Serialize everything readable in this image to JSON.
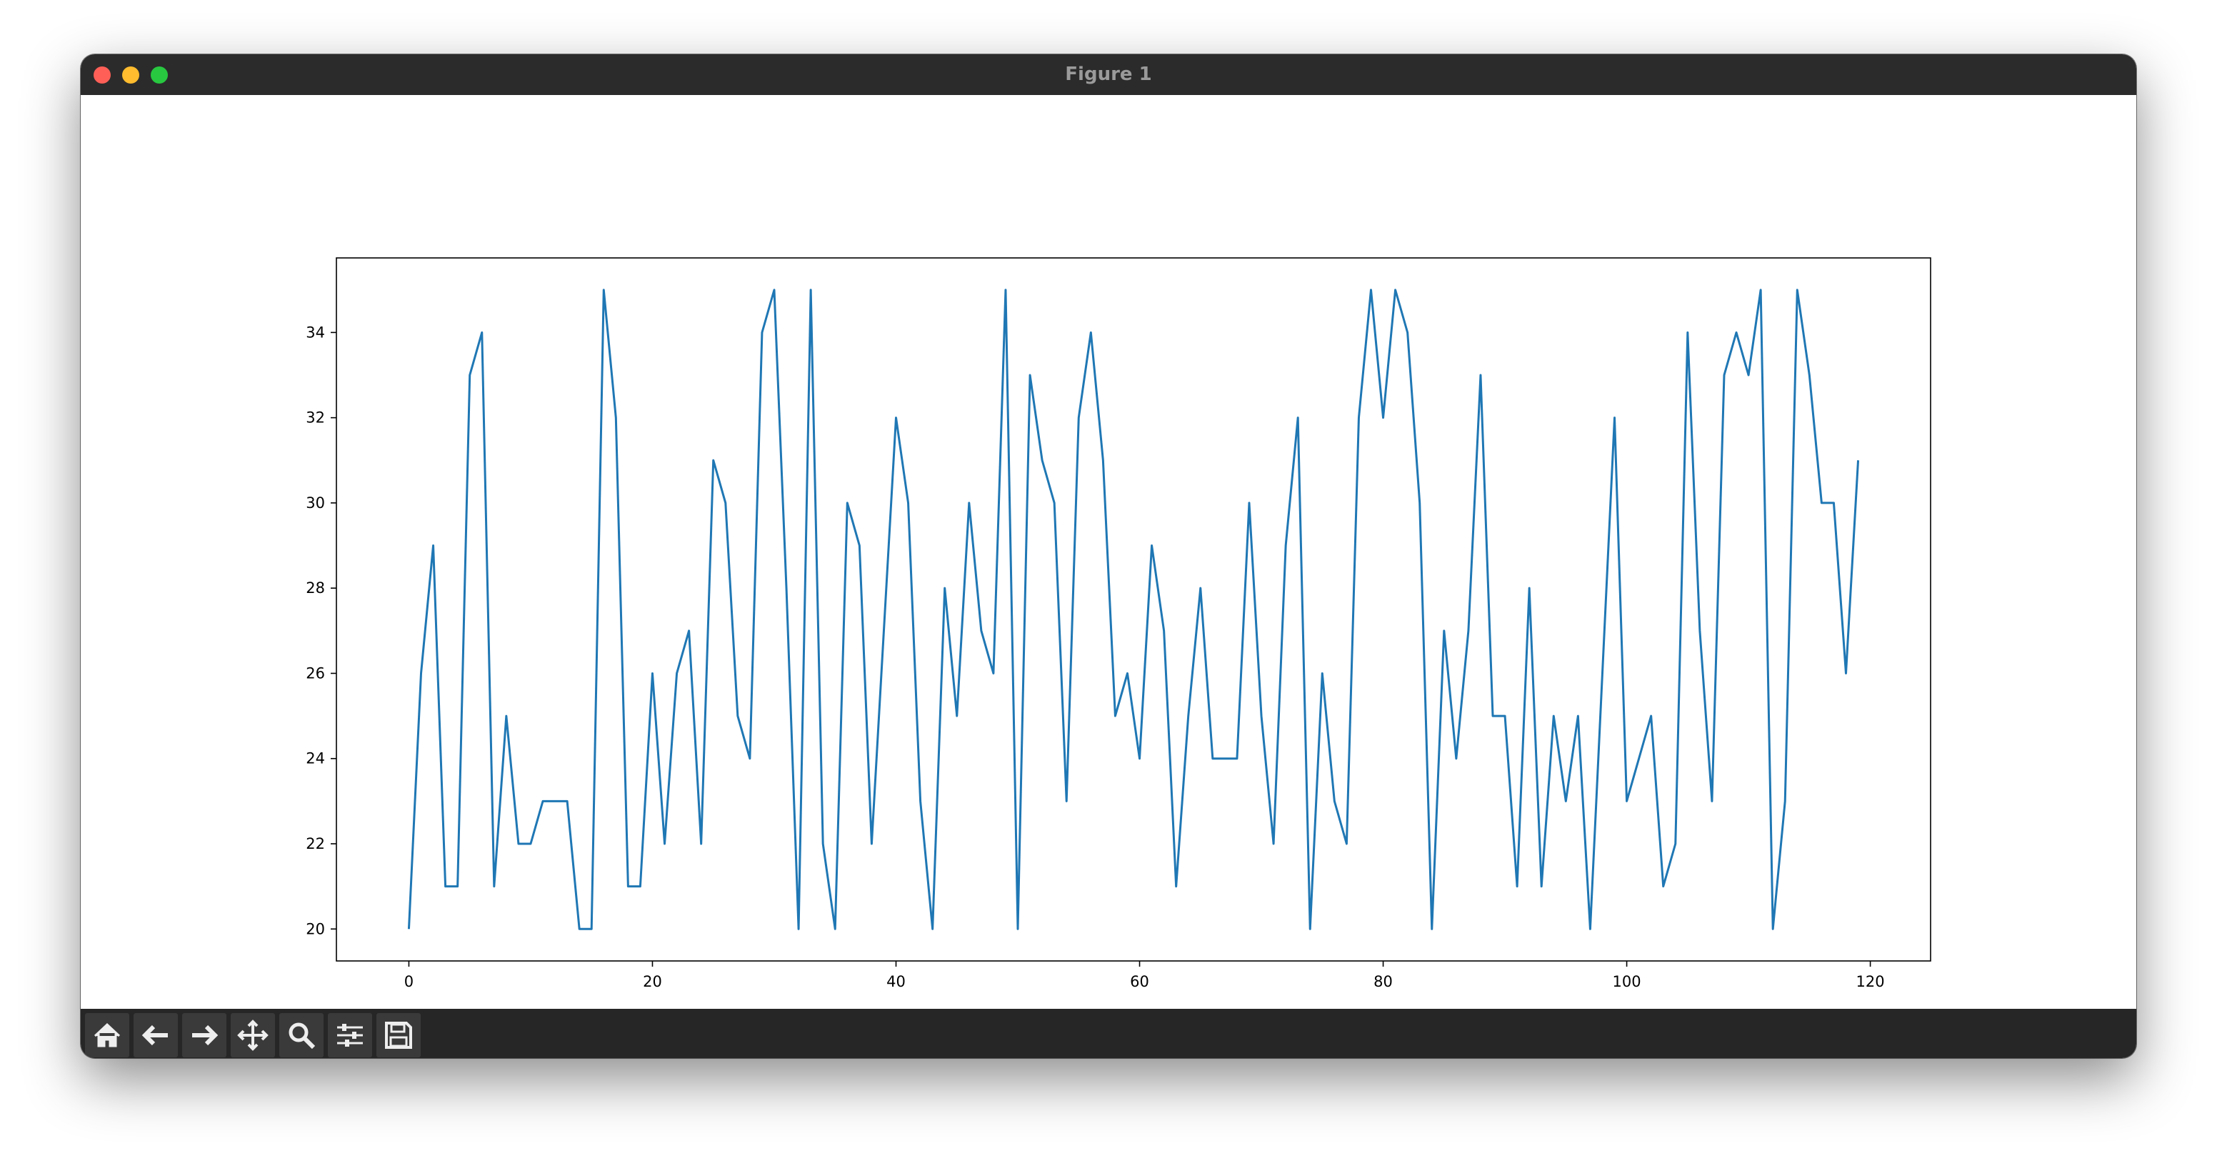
{
  "window_title": "Figure 1",
  "chart_data": {
    "type": "line",
    "color": "#1f77b4",
    "x": [
      0,
      1,
      2,
      3,
      4,
      5,
      6,
      7,
      8,
      9,
      10,
      11,
      12,
      13,
      14,
      15,
      16,
      17,
      18,
      19,
      20,
      21,
      22,
      23,
      24,
      25,
      26,
      27,
      28,
      29,
      30,
      31,
      32,
      33,
      34,
      35,
      36,
      37,
      38,
      39,
      40,
      41,
      42,
      43,
      44,
      45,
      46,
      47,
      48,
      49,
      50,
      51,
      52,
      53,
      54,
      55,
      56,
      57,
      58,
      59,
      60,
      61,
      62,
      63,
      64,
      65,
      66,
      67,
      68,
      69,
      70,
      71,
      72,
      73,
      74,
      75,
      76,
      77,
      78,
      79,
      80,
      81,
      82,
      83,
      84,
      85,
      86,
      87,
      88,
      89,
      90,
      91,
      92,
      93,
      94,
      95,
      96,
      97,
      98,
      99,
      100,
      101,
      102,
      103,
      104,
      105,
      106,
      107,
      108,
      109,
      110,
      111,
      112,
      113,
      114,
      115,
      116,
      117,
      118,
      119
    ],
    "values": [
      20,
      26,
      29,
      21,
      21,
      33,
      34,
      21,
      25,
      22,
      22,
      23,
      23,
      23,
      20,
      20,
      35,
      32,
      21,
      21,
      26,
      22,
      26,
      27,
      22,
      31,
      30,
      25,
      24,
      34,
      35,
      28,
      20,
      35,
      22,
      20,
      30,
      29,
      22,
      27,
      32,
      30,
      23,
      20,
      28,
      25,
      30,
      27,
      26,
      35,
      20,
      33,
      31,
      30,
      23,
      32,
      34,
      31,
      25,
      26,
      24,
      29,
      27,
      21,
      25,
      28,
      24,
      24,
      24,
      30,
      25,
      22,
      29,
      32,
      20,
      26,
      23,
      22,
      32,
      35,
      32,
      35,
      34,
      30,
      20,
      27,
      24,
      27,
      33,
      25,
      25,
      21,
      28,
      21,
      25,
      23,
      25,
      20,
      26,
      32,
      23,
      24,
      25,
      21,
      22,
      34,
      27,
      23,
      33,
      34,
      33,
      35,
      20,
      23,
      35,
      33,
      30,
      30,
      26,
      31
    ],
    "xlim": [
      -5.95,
      124.95
    ],
    "ylim": [
      19.25,
      35.75
    ],
    "xticks": [
      0,
      20,
      40,
      60,
      80,
      100,
      120
    ],
    "yticks": [
      20,
      22,
      24,
      26,
      28,
      30,
      32,
      34
    ]
  }
}
